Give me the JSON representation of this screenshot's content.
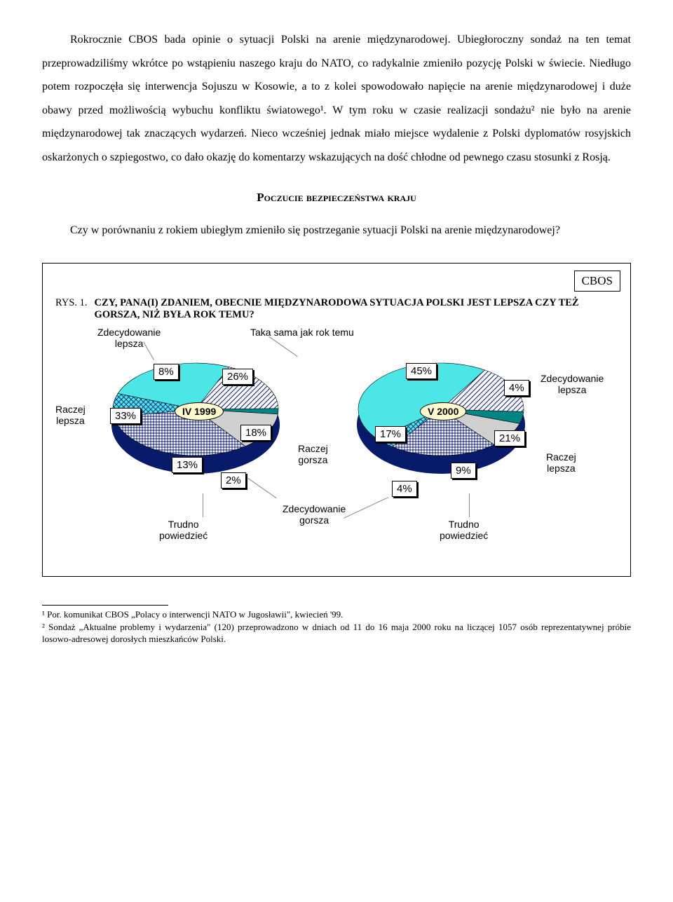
{
  "paragraph1": "Rokrocznie CBOS bada opinie o sytuacji Polski na arenie międzynarodowej. Ubiegłoroczny sondaż na ten temat przeprowadziliśmy wkrótce po wstąpieniu naszego kraju do NATO, co radykalnie zmieniło pozycję Polski w świecie. Niedługo potem rozpoczęła się interwencja Sojuszu w Kosowie, a to z kolei spowodowało napięcie na arenie międzynarodowej i duże obawy przed możliwością wybuchu konfliktu światowego¹. W tym roku w czasie realizacji sondażu² nie było na arenie międzynarodowej tak znaczących wydarzeń. Nieco wcześniej jednak miało miejsce wydalenie z Polski dyplomatów rosyjskich oskarżonych o szpiegostwo, co dało okazję do komentarzy wskazujących na dość chłodne od pewnego czasu stosunki z Rosją.",
  "section_title": "Poczucie bezpieczeństwa kraju",
  "paragraph2": "Czy w porównaniu z rokiem ubiegłym zmieniło się postrzeganie sytuacji Polski na arenie międzynarodowej?",
  "cbos_tag": "CBOS",
  "fig_label": "RYS. 1.",
  "fig_caption": "CZY, PANA(I) ZDANIEM, OBECNIE MIĘDZYNARODOWA SYTUACJA POLSKI JEST LEPSZA CZY TEŻ GORSZA, NIŻ BYŁA ROK TEMU?",
  "labels": {
    "zdec_lepsza": "Zdecydowanie\nlepsza",
    "raczej_lepsza": "Raczej\nlepsza",
    "taka_sama": "Taka sama jak rok temu",
    "raczej_gorsza": "Raczej\ngorsza",
    "zdec_gorsza": "Zdecydowanie\ngorsza",
    "trudno": "Trudno\npowiedzieć"
  },
  "pie1999": {
    "year": "IV 1999",
    "slices": {
      "zdec_lepsza": {
        "pct": "8%",
        "start": 260,
        "end": 290,
        "fill": "#4de6e6",
        "hatch": "cross"
      },
      "taka_sama": {
        "pct": "26%",
        "start": 290,
        "end": 384,
        "fill": "#4de6e6",
        "hatch": "none"
      },
      "raczej_gorsza": {
        "pct": "18%",
        "start": 24,
        "end": 89,
        "fill": "#ffffff",
        "hatch": "diag"
      },
      "zdec_gorsza": {
        "pct": "2%",
        "start": 89,
        "end": 96,
        "fill": "#008484",
        "hatch": "none"
      },
      "trudno": {
        "pct": "13%",
        "start": 96,
        "end": 143,
        "fill": "#d0d0d0",
        "hatch": "none"
      },
      "raczej_lepsza": {
        "pct": "33%",
        "start": 143,
        "end": 260,
        "fill": "#ffffff",
        "hatch": "grid"
      }
    }
  },
  "pie2000": {
    "year": "V 2000",
    "slices": {
      "taka_sama": {
        "pct": "45%",
        "start": 230,
        "end": 392,
        "fill": "#4de6e6",
        "hatch": "none"
      },
      "raczej_gorsza": {
        "pct": "17%",
        "start": 32,
        "end": 93,
        "fill": "#ffffff",
        "hatch": "diag"
      },
      "zdec_gorsza": {
        "pct": "4%",
        "start": 93,
        "end": 108,
        "fill": "#008484",
        "hatch": "none"
      },
      "trudno": {
        "pct": "9%",
        "start": 108,
        "end": 140,
        "fill": "#d0d0d0",
        "hatch": "none"
      },
      "raczej_lepsza": {
        "pct": "21%",
        "start": 140,
        "end": 216,
        "fill": "#ffffff",
        "hatch": "grid"
      },
      "zdec_lepsza": {
        "pct": "4%",
        "start": 216,
        "end": 230,
        "fill": "#4de6e6",
        "hatch": "cross"
      }
    }
  },
  "colors": {
    "cyan": "#4de6e6",
    "teal": "#008484",
    "navy": "#0a1870",
    "grey": "#d0d0d0",
    "pill": "#fffccd"
  },
  "footnote1": "¹ Por. komunikat CBOS „Polacy o interwencji NATO w Jugosławii\", kwiecień '99.",
  "footnote2": "² Sondaż „Aktualne problemy i wydarzenia\" (120) przeprowadzono w dniach od 11 do 16  maja 2000 roku na liczącej 1057 osób reprezentatywnej próbie losowo-adresowej dorosłych mieszkańców Polski."
}
